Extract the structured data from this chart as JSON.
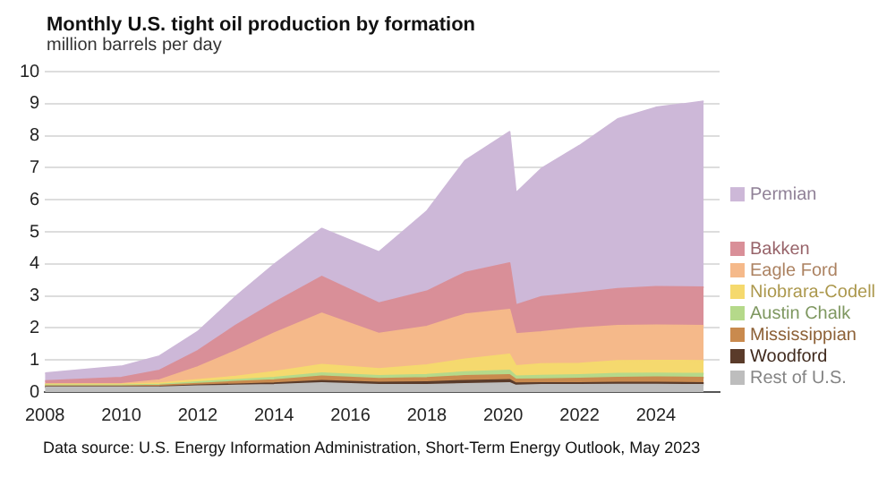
{
  "chart_data": {
    "type": "area",
    "stacked": true,
    "title": "Monthly U.S. tight oil production by formation",
    "subtitle": "million barrels per day",
    "annotations": [
      "Data source: U.S. Energy Information Administration, Short-Term Energy Outlook, May 2023"
    ],
    "x": [
      "2008-01",
      "2010-01",
      "2011-01",
      "2012-01",
      "2013-01",
      "2014-01",
      "2015-04",
      "2016-10",
      "2018-01",
      "2019-01",
      "2020-03",
      "2020-05",
      "2021-01",
      "2022-01",
      "2023-01",
      "2024-01",
      "2025-04"
    ],
    "xlim": [
      "2008-01",
      "2025-09"
    ],
    "xticks": [
      {
        "value": "2008",
        "label": "2008"
      },
      {
        "value": "2010",
        "label": "2010"
      },
      {
        "value": "2012",
        "label": "2012"
      },
      {
        "value": "2014",
        "label": "2014"
      },
      {
        "value": "2016",
        "label": "2016"
      },
      {
        "value": "2018",
        "label": "2018"
      },
      {
        "value": "2020",
        "label": "2020"
      },
      {
        "value": "2022",
        "label": "2022"
      },
      {
        "value": "2024",
        "label": "2024"
      }
    ],
    "ylim": [
      0,
      10
    ],
    "yticks": [
      0,
      1,
      2,
      3,
      4,
      5,
      6,
      7,
      8,
      9,
      10
    ],
    "grid": "y",
    "legend": "right",
    "series": [
      {
        "name": "Rest of U.S.",
        "color": "#bdbdbd",
        "values": [
          0.15,
          0.15,
          0.15,
          0.18,
          0.2,
          0.22,
          0.28,
          0.22,
          0.22,
          0.25,
          0.28,
          0.2,
          0.22,
          0.22,
          0.23,
          0.23,
          0.22
        ]
      },
      {
        "name": "Woodford",
        "color": "#5a3b2a",
        "values": [
          0.01,
          0.01,
          0.02,
          0.03,
          0.04,
          0.05,
          0.07,
          0.07,
          0.09,
          0.1,
          0.1,
          0.07,
          0.06,
          0.06,
          0.06,
          0.06,
          0.06
        ]
      },
      {
        "name": "Mississippian",
        "color": "#c98a4e",
        "values": [
          0.02,
          0.02,
          0.03,
          0.05,
          0.08,
          0.1,
          0.14,
          0.12,
          0.13,
          0.15,
          0.15,
          0.12,
          0.12,
          0.14,
          0.16,
          0.17,
          0.17
        ]
      },
      {
        "name": "Austin Chalk",
        "color": "#b5d98a",
        "values": [
          0.03,
          0.03,
          0.03,
          0.05,
          0.06,
          0.08,
          0.1,
          0.09,
          0.1,
          0.12,
          0.14,
          0.1,
          0.11,
          0.11,
          0.12,
          0.12,
          0.12
        ]
      },
      {
        "name": "Niobrara-Codell",
        "color": "#f5d96e",
        "values": [
          0.03,
          0.03,
          0.04,
          0.07,
          0.1,
          0.18,
          0.26,
          0.22,
          0.3,
          0.4,
          0.5,
          0.32,
          0.36,
          0.36,
          0.4,
          0.4,
          0.4
        ]
      },
      {
        "name": "Eagle Ford",
        "color": "#f5b98a",
        "values": [
          0.0,
          0.01,
          0.1,
          0.4,
          0.8,
          1.2,
          1.6,
          1.1,
          1.2,
          1.4,
          1.4,
          1.0,
          1.0,
          1.1,
          1.1,
          1.1,
          1.1
        ]
      },
      {
        "name": "Bakken",
        "color": "#d98f98",
        "values": [
          0.1,
          0.2,
          0.3,
          0.5,
          0.8,
          0.95,
          1.15,
          0.95,
          1.1,
          1.3,
          1.45,
          0.9,
          1.1,
          1.1,
          1.15,
          1.2,
          1.2
        ]
      },
      {
        "name": "Permian",
        "color": "#cdb8d8",
        "values": [
          0.25,
          0.35,
          0.45,
          0.6,
          0.9,
          1.2,
          1.5,
          1.6,
          2.5,
          3.5,
          4.1,
          3.5,
          4.0,
          4.6,
          5.3,
          5.6,
          5.8
        ]
      }
    ]
  }
}
